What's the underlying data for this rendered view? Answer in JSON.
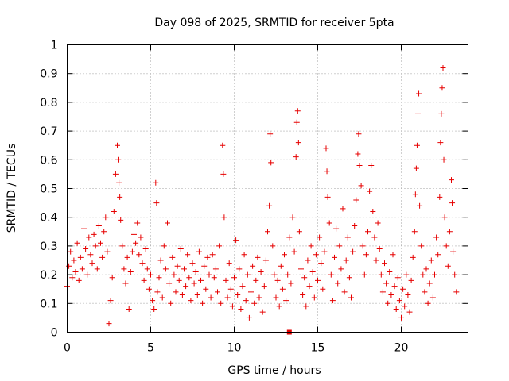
{
  "chart_data": {
    "type": "scatter",
    "title": "Day 098 of 2025, SRMTID for receiver 5pta",
    "xlabel": "GPS time / hours",
    "ylabel": "SRMTID / TECUs",
    "xlim": [
      0,
      24
    ],
    "ylim": [
      0,
      1
    ],
    "xticks": [
      0,
      5,
      10,
      15,
      20
    ],
    "xtick_labels": [
      "0",
      "5",
      "10",
      "15",
      "20"
    ],
    "yticks": [
      0,
      0.1,
      0.2,
      0.3,
      0.4,
      0.5,
      0.6,
      0.7,
      0.8,
      0.9,
      1
    ],
    "ytick_labels": [
      "0",
      "0.1",
      "0.2",
      "0.3",
      "0.4",
      "0.5",
      "0.6",
      "0.7",
      "0.8",
      "0.9",
      "1"
    ],
    "grid": true,
    "marker": "plus",
    "marker_color": "#e60000",
    "series": [
      {
        "name": "SRMTID",
        "points": [
          [
            0.0,
            0.16
          ],
          [
            0.1,
            0.23
          ],
          [
            0.2,
            0.28
          ],
          [
            0.3,
            0.19
          ],
          [
            0.4,
            0.25
          ],
          [
            0.5,
            0.21
          ],
          [
            0.6,
            0.31
          ],
          [
            0.7,
            0.18
          ],
          [
            0.8,
            0.26
          ],
          [
            0.9,
            0.22
          ],
          [
            1.0,
            0.36
          ],
          [
            1.1,
            0.29
          ],
          [
            1.2,
            0.2
          ],
          [
            1.3,
            0.33
          ],
          [
            1.4,
            0.27
          ],
          [
            1.5,
            0.24
          ],
          [
            1.6,
            0.34
          ],
          [
            1.7,
            0.3
          ],
          [
            1.8,
            0.22
          ],
          [
            1.9,
            0.37
          ],
          [
            2.0,
            0.31
          ],
          [
            2.1,
            0.26
          ],
          [
            2.2,
            0.35
          ],
          [
            2.3,
            0.4
          ],
          [
            2.4,
            0.28
          ],
          [
            2.5,
            0.03
          ],
          [
            2.6,
            0.11
          ],
          [
            2.7,
            0.19
          ],
          [
            2.8,
            0.42
          ],
          [
            2.9,
            0.55
          ],
          [
            3.0,
            0.65
          ],
          [
            3.05,
            0.6
          ],
          [
            3.1,
            0.52
          ],
          [
            3.15,
            0.47
          ],
          [
            3.2,
            0.39
          ],
          [
            3.3,
            0.3
          ],
          [
            3.4,
            0.22
          ],
          [
            3.5,
            0.17
          ],
          [
            3.6,
            0.26
          ],
          [
            3.7,
            0.08
          ],
          [
            3.8,
            0.21
          ],
          [
            3.9,
            0.28
          ],
          [
            4.0,
            0.34
          ],
          [
            4.1,
            0.31
          ],
          [
            4.2,
            0.38
          ],
          [
            4.3,
            0.27
          ],
          [
            4.4,
            0.33
          ],
          [
            4.5,
            0.24
          ],
          [
            4.6,
            0.18
          ],
          [
            4.7,
            0.29
          ],
          [
            4.8,
            0.22
          ],
          [
            4.9,
            0.15
          ],
          [
            5.0,
            0.2
          ],
          [
            5.1,
            0.11
          ],
          [
            5.2,
            0.08
          ],
          [
            5.3,
            0.52
          ],
          [
            5.35,
            0.45
          ],
          [
            5.4,
            0.14
          ],
          [
            5.5,
            0.19
          ],
          [
            5.6,
            0.25
          ],
          [
            5.7,
            0.12
          ],
          [
            5.8,
            0.3
          ],
          [
            5.9,
            0.22
          ],
          [
            6.0,
            0.38
          ],
          [
            6.1,
            0.17
          ],
          [
            6.2,
            0.1
          ],
          [
            6.3,
            0.26
          ],
          [
            6.4,
            0.2
          ],
          [
            6.5,
            0.14
          ],
          [
            6.6,
            0.23
          ],
          [
            6.7,
            0.18
          ],
          [
            6.8,
            0.29
          ],
          [
            6.9,
            0.13
          ],
          [
            7.0,
            0.22
          ],
          [
            7.1,
            0.16
          ],
          [
            7.2,
            0.27
          ],
          [
            7.3,
            0.19
          ],
          [
            7.4,
            0.11
          ],
          [
            7.5,
            0.24
          ],
          [
            7.6,
            0.17
          ],
          [
            7.7,
            0.21
          ],
          [
            7.8,
            0.13
          ],
          [
            7.9,
            0.28
          ],
          [
            8.0,
            0.18
          ],
          [
            8.1,
            0.1
          ],
          [
            8.2,
            0.23
          ],
          [
            8.3,
            0.15
          ],
          [
            8.4,
            0.26
          ],
          [
            8.5,
            0.2
          ],
          [
            8.6,
            0.12
          ],
          [
            8.7,
            0.27
          ],
          [
            8.8,
            0.19
          ],
          [
            8.9,
            0.22
          ],
          [
            9.0,
            0.14
          ],
          [
            9.1,
            0.3
          ],
          [
            9.2,
            0.1
          ],
          [
            9.3,
            0.65
          ],
          [
            9.35,
            0.55
          ],
          [
            9.4,
            0.4
          ],
          [
            9.5,
            0.18
          ],
          [
            9.6,
            0.12
          ],
          [
            9.7,
            0.24
          ],
          [
            9.8,
            0.15
          ],
          [
            9.9,
            0.09
          ],
          [
            10.0,
            0.19
          ],
          [
            10.1,
            0.32
          ],
          [
            10.2,
            0.13
          ],
          [
            10.3,
            0.22
          ],
          [
            10.4,
            0.08
          ],
          [
            10.5,
            0.16
          ],
          [
            10.6,
            0.27
          ],
          [
            10.7,
            0.11
          ],
          [
            10.8,
            0.2
          ],
          [
            10.9,
            0.05
          ],
          [
            11.0,
            0.14
          ],
          [
            11.1,
            0.23
          ],
          [
            11.2,
            0.1
          ],
          [
            11.3,
            0.18
          ],
          [
            11.4,
            0.26
          ],
          [
            11.5,
            0.12
          ],
          [
            11.6,
            0.21
          ],
          [
            11.7,
            0.07
          ],
          [
            11.8,
            0.16
          ],
          [
            11.9,
            0.25
          ],
          [
            12.0,
            0.35
          ],
          [
            12.1,
            0.44
          ],
          [
            12.15,
            0.69
          ],
          [
            12.2,
            0.59
          ],
          [
            12.3,
            0.3
          ],
          [
            12.4,
            0.2
          ],
          [
            12.5,
            0.12
          ],
          [
            12.6,
            0.18
          ],
          [
            12.7,
            0.09
          ],
          [
            12.8,
            0.23
          ],
          [
            12.9,
            0.15
          ],
          [
            13.0,
            0.27
          ],
          [
            13.1,
            0.11
          ],
          [
            13.2,
            0.2
          ],
          [
            13.3,
            0.33
          ],
          [
            13.4,
            0.17
          ],
          [
            13.5,
            0.4
          ],
          [
            13.6,
            0.28
          ],
          [
            13.7,
            0.61
          ],
          [
            13.75,
            0.73
          ],
          [
            13.8,
            0.77
          ],
          [
            13.85,
            0.66
          ],
          [
            13.9,
            0.35
          ],
          [
            14.0,
            0.22
          ],
          [
            14.1,
            0.13
          ],
          [
            14.2,
            0.19
          ],
          [
            14.3,
            0.09
          ],
          [
            14.4,
            0.25
          ],
          [
            14.5,
            0.16
          ],
          [
            14.6,
            0.3
          ],
          [
            14.7,
            0.21
          ],
          [
            14.8,
            0.12
          ],
          [
            14.9,
            0.27
          ],
          [
            15.0,
            0.18
          ],
          [
            15.1,
            0.33
          ],
          [
            15.2,
            0.24
          ],
          [
            15.3,
            0.15
          ],
          [
            15.4,
            0.28
          ],
          [
            15.5,
            0.64
          ],
          [
            15.55,
            0.56
          ],
          [
            15.6,
            0.47
          ],
          [
            15.7,
            0.38
          ],
          [
            15.8,
            0.2
          ],
          [
            15.9,
            0.11
          ],
          [
            16.0,
            0.26
          ],
          [
            16.1,
            0.36
          ],
          [
            16.2,
            0.17
          ],
          [
            16.3,
            0.3
          ],
          [
            16.4,
            0.22
          ],
          [
            16.5,
            0.43
          ],
          [
            16.6,
            0.14
          ],
          [
            16.7,
            0.25
          ],
          [
            16.8,
            0.33
          ],
          [
            16.9,
            0.19
          ],
          [
            17.0,
            0.12
          ],
          [
            17.1,
            0.28
          ],
          [
            17.2,
            0.37
          ],
          [
            17.3,
            0.46
          ],
          [
            17.4,
            0.62
          ],
          [
            17.45,
            0.69
          ],
          [
            17.5,
            0.58
          ],
          [
            17.6,
            0.51
          ],
          [
            17.7,
            0.3
          ],
          [
            17.8,
            0.2
          ],
          [
            17.9,
            0.27
          ],
          [
            18.0,
            0.35
          ],
          [
            18.1,
            0.49
          ],
          [
            18.2,
            0.58
          ],
          [
            18.3,
            0.42
          ],
          [
            18.4,
            0.33
          ],
          [
            18.5,
            0.25
          ],
          [
            18.6,
            0.38
          ],
          [
            18.7,
            0.29
          ],
          [
            18.8,
            0.2
          ],
          [
            18.9,
            0.14
          ],
          [
            19.0,
            0.24
          ],
          [
            19.1,
            0.17
          ],
          [
            19.2,
            0.1
          ],
          [
            19.3,
            0.21
          ],
          [
            19.4,
            0.13
          ],
          [
            19.5,
            0.27
          ],
          [
            19.6,
            0.16
          ],
          [
            19.7,
            0.08
          ],
          [
            19.8,
            0.19
          ],
          [
            19.9,
            0.11
          ],
          [
            20.0,
            0.05
          ],
          [
            20.1,
            0.15
          ],
          [
            20.2,
            0.09
          ],
          [
            20.3,
            0.2
          ],
          [
            20.4,
            0.13
          ],
          [
            20.5,
            0.07
          ],
          [
            20.6,
            0.18
          ],
          [
            20.7,
            0.26
          ],
          [
            20.8,
            0.35
          ],
          [
            20.85,
            0.48
          ],
          [
            20.9,
            0.57
          ],
          [
            20.95,
            0.65
          ],
          [
            21.0,
            0.76
          ],
          [
            21.05,
            0.83
          ],
          [
            21.1,
            0.44
          ],
          [
            21.2,
            0.3
          ],
          [
            21.3,
            0.2
          ],
          [
            21.4,
            0.14
          ],
          [
            21.5,
            0.22
          ],
          [
            21.6,
            0.1
          ],
          [
            21.7,
            0.17
          ],
          [
            21.8,
            0.25
          ],
          [
            21.9,
            0.12
          ],
          [
            22.0,
            0.2
          ],
          [
            22.1,
            0.33
          ],
          [
            22.2,
            0.27
          ],
          [
            22.3,
            0.47
          ],
          [
            22.35,
            0.66
          ],
          [
            22.4,
            0.76
          ],
          [
            22.45,
            0.85
          ],
          [
            22.5,
            0.92
          ],
          [
            22.55,
            0.6
          ],
          [
            22.6,
            0.4
          ],
          [
            22.7,
            0.3
          ],
          [
            22.8,
            0.23
          ],
          [
            22.9,
            0.35
          ],
          [
            23.0,
            0.53
          ],
          [
            23.05,
            0.45
          ],
          [
            23.1,
            0.28
          ],
          [
            23.2,
            0.2
          ],
          [
            23.3,
            0.14
          ]
        ]
      }
    ],
    "baseline_marker": {
      "x": 13.3,
      "y": 0
    }
  }
}
